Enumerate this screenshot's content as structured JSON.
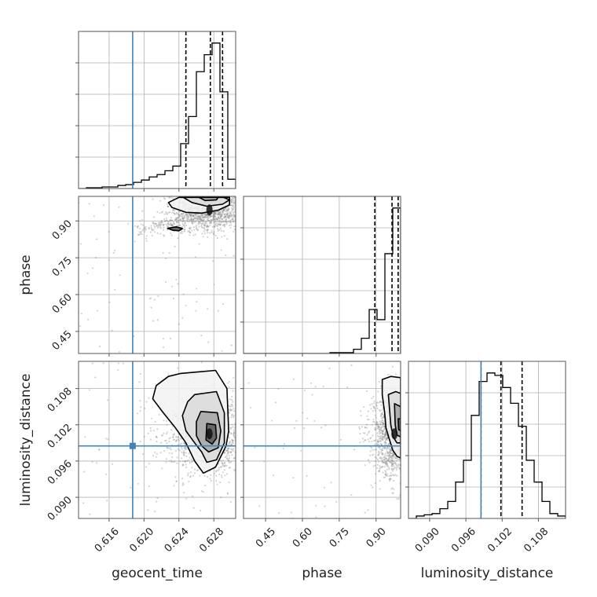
{
  "colors": {
    "truth": "#4682b4",
    "hist": "#000000",
    "grid": "#b0b0b0",
    "points": "#808080",
    "axis": "#555555"
  },
  "chart_data": {
    "type": "corner",
    "grid": true,
    "parameters": [
      {
        "name": "geocent_time",
        "label": "geocent_time",
        "range": [
          0.6125,
          0.6305
        ],
        "ticks": [
          0.616,
          0.62,
          0.624,
          0.628
        ],
        "tick_labels": [
          "0.616",
          "0.620",
          "0.624",
          "0.628"
        ]
      },
      {
        "name": "phase",
        "label": "phase",
        "range": [
          0.36,
          1.0
        ],
        "ticks": [
          0.45,
          0.6,
          0.75,
          0.9
        ],
        "tick_labels": [
          "0.45",
          "0.60",
          "0.75",
          "0.90"
        ]
      },
      {
        "name": "luminosity_distance",
        "label": "luminosity_distance",
        "range": [
          0.0865,
          0.1125
        ],
        "ticks": [
          0.09,
          0.096,
          0.102,
          0.108
        ],
        "tick_labels": [
          "0.090",
          "0.096",
          "0.102",
          "0.108"
        ]
      }
    ],
    "truths": {
      "geocent_time": 0.6187,
      "luminosity_distance": 0.0985
    },
    "quantiles": {
      "geocent_time": [
        0.6248,
        0.6276,
        0.629
      ],
      "phase": [
        0.895,
        0.965,
        0.99
      ],
      "luminosity_distance": [
        0.0985,
        0.1018,
        0.1053
      ]
    },
    "histograms": {
      "geocent_time": {
        "bin_edges": [
          0.6125,
          0.6134,
          0.6143,
          0.6152,
          0.6161,
          0.617,
          0.6179,
          0.6188,
          0.6197,
          0.6206,
          0.6215,
          0.6224,
          0.6233,
          0.6242,
          0.6251,
          0.626,
          0.6269,
          0.6278,
          0.6287,
          0.6296,
          0.6305
        ],
        "counts": [
          0,
          1,
          1,
          2,
          2,
          4,
          5,
          8,
          11,
          15,
          18,
          23,
          29,
          58,
          93,
          151,
          173,
          188,
          125,
          12
        ]
      },
      "phase": {
        "bin_edges": [
          0.36,
          0.392,
          0.424,
          0.456,
          0.488,
          0.52,
          0.552,
          0.584,
          0.616,
          0.648,
          0.68,
          0.712,
          0.744,
          0.776,
          0.808,
          0.84,
          0.872,
          0.904,
          0.936,
          0.968,
          1.0
        ],
        "counts": [
          0,
          0,
          0,
          0,
          0,
          0,
          0,
          0,
          0,
          0,
          0,
          1,
          1,
          1,
          5,
          18,
          52,
          40,
          118,
          172
        ]
      },
      "luminosity_distance": {
        "bin_edges": [
          0.0865,
          0.0878,
          0.0891,
          0.0904,
          0.0917,
          0.093,
          0.0943,
          0.0956,
          0.0969,
          0.0982,
          0.0995,
          0.1008,
          0.1021,
          0.1034,
          0.1047,
          0.106,
          0.1073,
          0.1086,
          0.1099,
          0.1112,
          0.1125
        ],
        "counts": [
          0,
          2,
          3,
          4,
          8,
          14,
          30,
          48,
          85,
          113,
          120,
          118,
          108,
          95,
          76,
          48,
          30,
          14,
          4,
          2
        ]
      }
    },
    "density_2d": [
      {
        "x": "geocent_time",
        "y": "phase",
        "cluster_center": [
          0.6275,
          0.945
        ],
        "cluster_spread": [
          0.0022,
          0.045
        ],
        "tail_toward": [
          0.6195,
          0.85
        ],
        "contours": [
          {
            "points": [
              [
                0.6298,
                0.996
              ],
              [
                0.624,
                0.996
              ],
              [
                0.6228,
                0.975
              ],
              [
                0.6232,
                0.955
              ],
              [
                0.6248,
                0.935
              ],
              [
                0.6266,
                0.932
              ],
              [
                0.6285,
                0.944
              ],
              [
                0.6298,
                0.965
              ]
            ]
          },
          {
            "points": [
              [
                0.6245,
                0.996
              ],
              [
                0.6255,
                0.975
              ],
              [
                0.6272,
                0.96
              ],
              [
                0.629,
                0.968
              ],
              [
                0.6298,
                0.986
              ],
              [
                0.6291,
                0.996
              ]
            ]
          },
          {
            "points": [
              [
                0.6263,
                0.996
              ],
              [
                0.627,
                0.983
              ],
              [
                0.6283,
                0.986
              ],
              [
                0.6285,
                0.996
              ]
            ]
          },
          {
            "points": [
              [
                0.6227,
                0.87
              ],
              [
                0.6233,
                0.862
              ],
              [
                0.624,
                0.86
              ],
              [
                0.6244,
                0.869
              ],
              [
                0.6237,
                0.876
              ]
            ]
          }
        ]
      },
      {
        "x": "geocent_time",
        "y": "luminosity_distance",
        "cluster_center": [
          0.6275,
          0.1005
        ],
        "cluster_spread": [
          0.0024,
          0.0032
        ],
        "contours": [
          {
            "points": [
              [
                0.6242,
                0.1105
              ],
              [
                0.6282,
                0.111
              ],
              [
                0.6295,
                0.108
              ],
              [
                0.6297,
                0.101
              ],
              [
                0.6294,
                0.0985
              ],
              [
                0.6282,
                0.095
              ],
              [
                0.6268,
                0.094
              ],
              [
                0.6258,
                0.096
              ],
              [
                0.6248,
                0.099
              ],
              [
                0.6236,
                0.1015
              ],
              [
                0.6222,
                0.104
              ],
              [
                0.621,
                0.1063
              ],
              [
                0.6214,
                0.1085
              ],
              [
                0.6228,
                0.11
              ]
            ]
          },
          {
            "points": [
              [
                0.6258,
                0.107
              ],
              [
                0.6283,
                0.1075
              ],
              [
                0.6292,
                0.104
              ],
              [
                0.6292,
                0.099
              ],
              [
                0.6283,
                0.0962
              ],
              [
                0.6272,
                0.0958
              ],
              [
                0.6266,
                0.0975
              ],
              [
                0.6258,
                0.099
              ],
              [
                0.6248,
                0.101
              ],
              [
                0.6244,
                0.1035
              ],
              [
                0.625,
                0.1058
              ]
            ]
          },
          {
            "points": [
              [
                0.6265,
                0.1042
              ],
              [
                0.6284,
                0.104
              ],
              [
                0.6288,
                0.101
              ],
              [
                0.6285,
                0.0982
              ],
              [
                0.6274,
                0.0975
              ],
              [
                0.6266,
                0.0985
              ],
              [
                0.626,
                0.1002
              ],
              [
                0.626,
                0.1025
              ]
            ]
          },
          {
            "points": [
              [
                0.6272,
                0.1022
              ],
              [
                0.6282,
                0.102
              ],
              [
                0.6283,
                0.0998
              ],
              [
                0.6278,
                0.0988
              ],
              [
                0.6271,
                0.0995
              ]
            ]
          }
        ]
      },
      {
        "x": "phase",
        "y": "luminosity_distance",
        "cluster_center": [
          0.975,
          0.1005
        ],
        "cluster_spread": [
          0.045,
          0.0035
        ],
        "contours": [
          {
            "points": [
              [
                0.925,
                0.1095
              ],
              [
                0.96,
                0.11
              ],
              [
                1.0,
                0.1098
              ],
              [
                1.0,
                0.0965
              ],
              [
                0.985,
                0.0968
              ],
              [
                0.968,
                0.0978
              ],
              [
                0.955,
                0.0995
              ],
              [
                0.94,
                0.1015
              ],
              [
                0.935,
                0.104
              ],
              [
                0.925,
                0.107
              ]
            ]
          },
          {
            "points": [
              [
                0.95,
                0.107
              ],
              [
                0.98,
                0.1075
              ],
              [
                1.0,
                0.1072
              ],
              [
                1.0,
                0.099
              ],
              [
                0.985,
                0.099
              ],
              [
                0.97,
                0.1
              ],
              [
                0.96,
                0.102
              ],
              [
                0.955,
                0.1045
              ]
            ]
          },
          {
            "points": [
              [
                0.975,
                0.1055
              ],
              [
                1.0,
                0.105
              ],
              [
                1.0,
                0.1
              ],
              [
                0.985,
                0.1003
              ],
              [
                0.978,
                0.102
              ]
            ]
          },
          {
            "points": [
              [
                0.99,
                0.103
              ],
              [
                1.0,
                0.103
              ],
              [
                1.0,
                0.101
              ],
              [
                0.992,
                0.1012
              ]
            ]
          }
        ]
      }
    ]
  }
}
